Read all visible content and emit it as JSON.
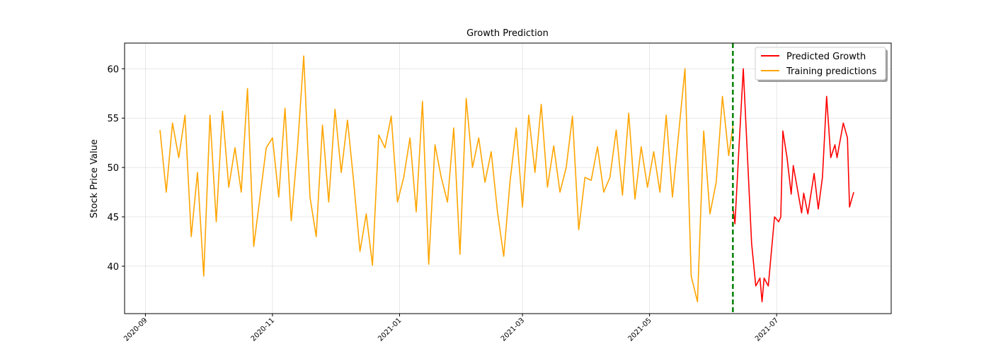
{
  "chart_data": {
    "type": "line",
    "title": "Growth Prediction",
    "y_label": "Stock Price Value",
    "xlim": [
      "2020-08-22",
      "2021-08-25"
    ],
    "ylim": [
      35.2,
      62.6
    ],
    "xticks": [
      "2020-09",
      "2020-11",
      "2021-01",
      "2021-03",
      "2021-05",
      "2021-07"
    ],
    "yticks": [
      40,
      45,
      50,
      55,
      60
    ],
    "grid": true,
    "legend": "upper right",
    "vline": {
      "x": "2021-06-10",
      "color": "#008000"
    },
    "series": [
      {
        "name": "Predicted Growth",
        "color": "#ff0000",
        "x": [
          "2021-06-10",
          "2021-06-11",
          "2021-06-13",
          "2021-06-15",
          "2021-06-19",
          "2021-06-21",
          "2021-06-23",
          "2021-06-24",
          "2021-06-25",
          "2021-06-27",
          "2021-06-30",
          "2021-07-02",
          "2021-07-03",
          "2021-07-04",
          "2021-07-06",
          "2021-07-08",
          "2021-07-09",
          "2021-07-13",
          "2021-07-14",
          "2021-07-16",
          "2021-07-19",
          "2021-07-21",
          "2021-07-23",
          "2021-07-25",
          "2021-07-27",
          "2021-07-29",
          "2021-07-30",
          "2021-08-02",
          "2021-08-04",
          "2021-08-05",
          "2021-08-07"
        ],
        "values": [
          46,
          44.3,
          52.3,
          60,
          42.3,
          38,
          38.8,
          36.4,
          38.8,
          38,
          45,
          44.5,
          45,
          53.7,
          51,
          47.3,
          50.2,
          45.4,
          47.4,
          45.3,
          49.4,
          45.8,
          49,
          57.2,
          51,
          52.3,
          51,
          54.5,
          53,
          46,
          47.5
        ]
      },
      {
        "name": "Training predictions",
        "color": "#ffa500",
        "x": [
          "2020-09-08",
          "2020-09-11",
          "2020-09-14",
          "2020-09-17",
          "2020-09-20",
          "2020-09-23",
          "2020-09-26",
          "2020-09-29",
          "2020-10-02",
          "2020-10-05",
          "2020-10-08",
          "2020-10-11",
          "2020-10-14",
          "2020-10-17",
          "2020-10-20",
          "2020-10-23",
          "2020-10-26",
          "2020-10-29",
          "2020-11-01",
          "2020-11-04",
          "2020-11-07",
          "2020-11-10",
          "2020-11-13",
          "2020-11-16",
          "2020-11-19",
          "2020-11-22",
          "2020-11-25",
          "2020-11-28",
          "2020-12-01",
          "2020-12-04",
          "2020-12-07",
          "2020-12-10",
          "2020-12-13",
          "2020-12-16",
          "2020-12-19",
          "2020-12-22",
          "2020-12-25",
          "2020-12-28",
          "2020-12-31",
          "2021-01-03",
          "2021-01-06",
          "2021-01-09",
          "2021-01-12",
          "2021-01-15",
          "2021-01-18",
          "2021-01-21",
          "2021-01-24",
          "2021-01-27",
          "2021-01-30",
          "2021-02-02",
          "2021-02-05",
          "2021-02-08",
          "2021-02-11",
          "2021-02-14",
          "2021-02-17",
          "2021-02-20",
          "2021-02-23",
          "2021-02-26",
          "2021-03-01",
          "2021-03-04",
          "2021-03-07",
          "2021-03-10",
          "2021-03-13",
          "2021-03-16",
          "2021-03-19",
          "2021-03-22",
          "2021-03-25",
          "2021-03-28",
          "2021-03-31",
          "2021-04-03",
          "2021-04-06",
          "2021-04-09",
          "2021-04-12",
          "2021-04-15",
          "2021-04-18",
          "2021-04-21",
          "2021-04-24",
          "2021-04-27",
          "2021-04-30",
          "2021-05-03",
          "2021-05-06",
          "2021-05-09",
          "2021-05-12",
          "2021-05-15",
          "2021-05-18",
          "2021-05-21",
          "2021-05-24",
          "2021-05-27",
          "2021-05-30",
          "2021-06-02",
          "2021-06-05",
          "2021-06-08",
          "2021-06-10"
        ],
        "values": [
          53.8,
          47.5,
          54.5,
          51,
          55.3,
          43,
          49.5,
          39,
          55.3,
          44.5,
          55.7,
          48,
          52,
          47.5,
          58,
          42,
          47,
          52,
          53,
          47,
          56,
          44.6,
          52,
          61.3,
          47,
          43,
          54.3,
          46.5,
          55.9,
          49.5,
          54.8,
          48.5,
          41.5,
          45.3,
          40.1,
          53.3,
          52,
          55.2,
          46.5,
          49,
          53,
          45.5,
          56.7,
          40.2,
          52.3,
          49,
          46.5,
          54,
          41.2,
          57,
          50,
          53,
          48.5,
          51.6,
          45.5,
          41,
          48.5,
          54,
          46,
          55.3,
          49.5,
          56.4,
          48,
          52.2,
          47.5,
          50,
          55.2,
          43.7,
          49,
          48.7,
          52.1,
          47.5,
          49,
          53.8,
          47.2,
          55.5,
          46.8,
          52.1,
          48,
          51.6,
          47.5,
          55.3,
          47,
          53.5,
          60,
          39,
          36.4,
          53.7,
          45.3,
          48.5,
          57.2,
          51.2,
          54.2
        ]
      }
    ]
  }
}
